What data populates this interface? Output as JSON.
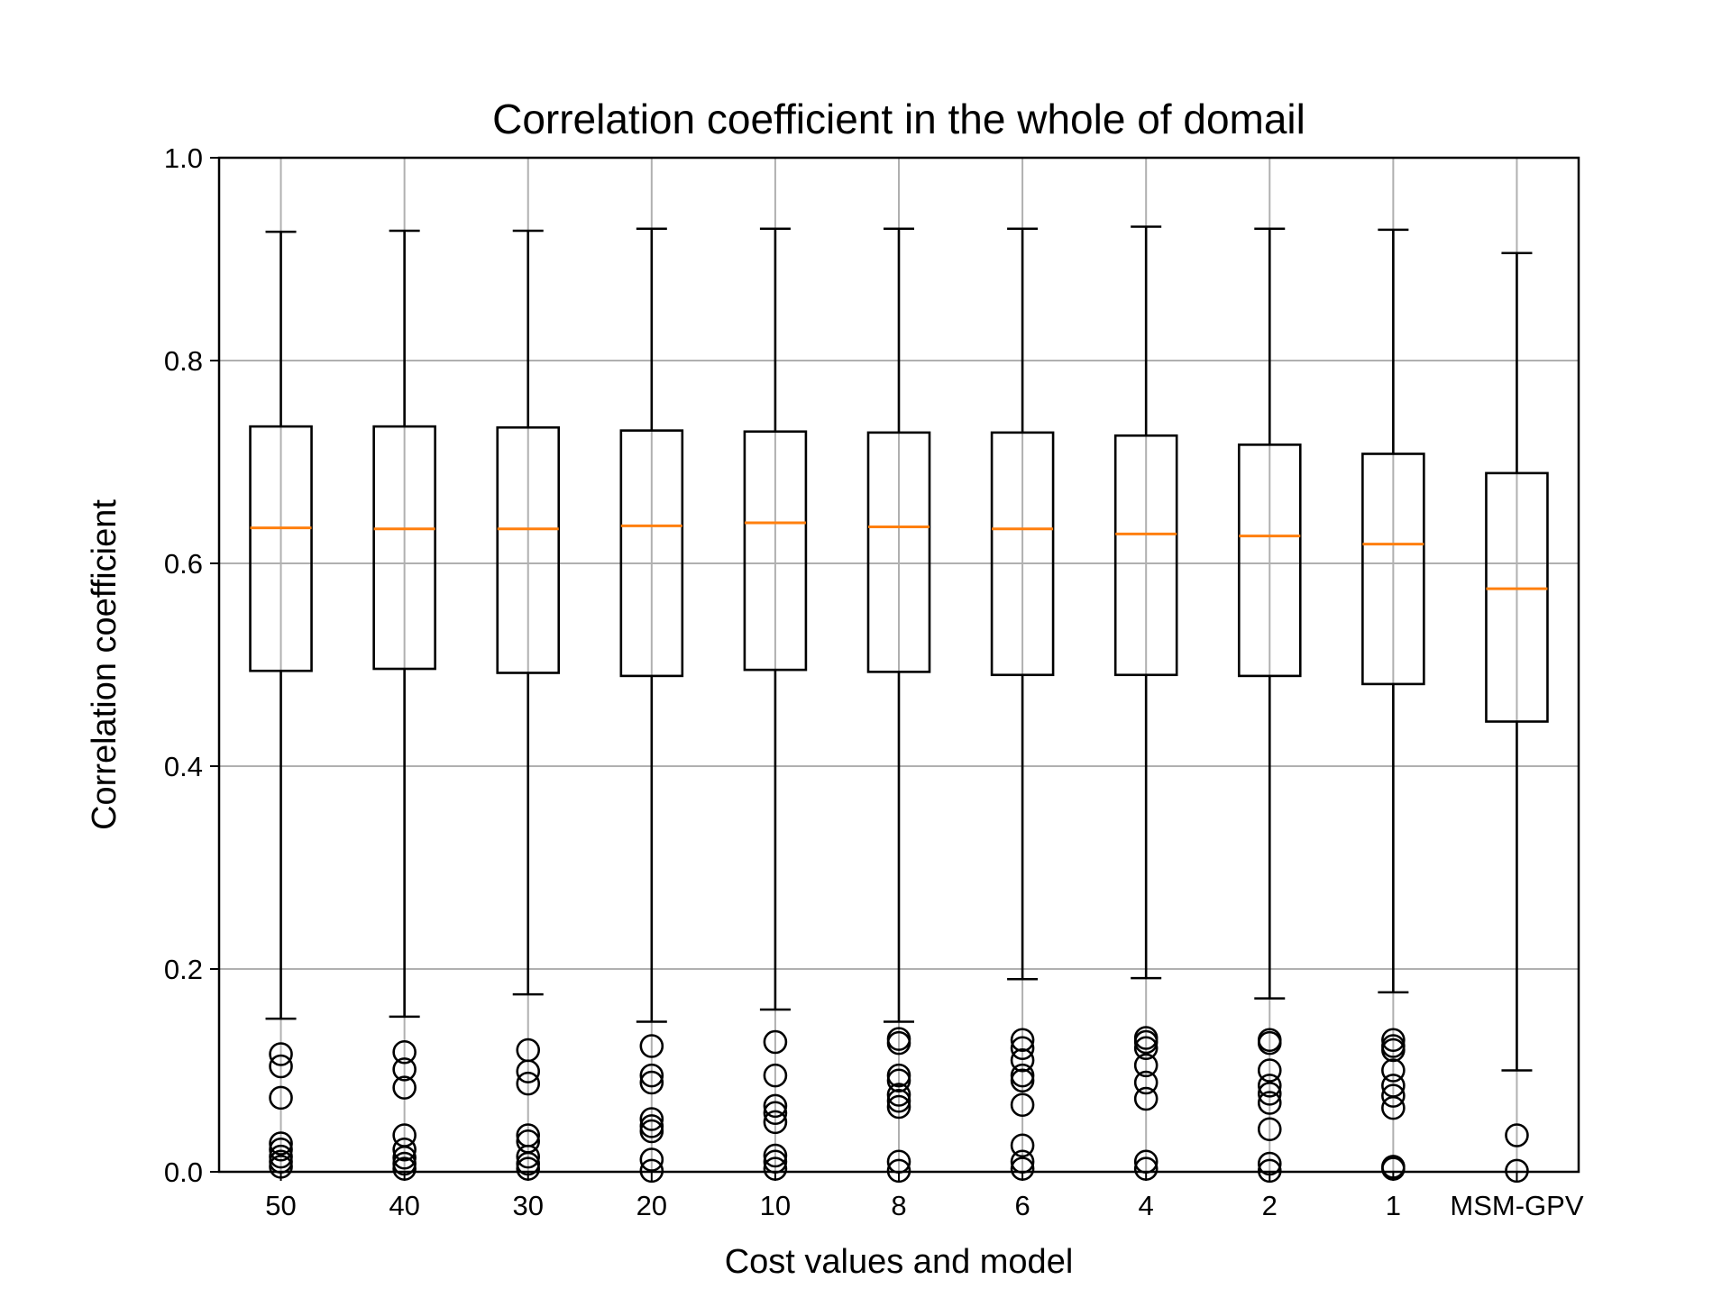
{
  "chart_data": {
    "type": "box",
    "title": "Correlation coefficient in the whole of domail",
    "xlabel": "Cost values and model",
    "ylabel": "Correlation coefficient",
    "ylim": [
      0.0,
      1.0
    ],
    "yticks": [
      "0.0",
      "0.2",
      "0.4",
      "0.6",
      "0.8",
      "1.0"
    ],
    "grid": true,
    "colors": {
      "box": "#000000",
      "median": "#ff7f0e",
      "grid": "#b0b0b0"
    },
    "categories": [
      "50",
      "40",
      "30",
      "20",
      "10",
      "8",
      "6",
      "4",
      "2",
      "1",
      "MSM-GPV"
    ],
    "boxes": [
      {
        "label": "50",
        "whislo": 0.151,
        "q1": 0.494,
        "med": 0.635,
        "q3": 0.735,
        "whishi": 0.927,
        "fliers": [
          0.116,
          0.104,
          0.073,
          0.028,
          0.022,
          0.015,
          0.01,
          0.005
        ]
      },
      {
        "label": "40",
        "whislo": 0.153,
        "q1": 0.496,
        "med": 0.634,
        "q3": 0.735,
        "whishi": 0.928,
        "fliers": [
          0.118,
          0.101,
          0.083,
          0.036,
          0.022,
          0.014,
          0.008,
          0.003
        ]
      },
      {
        "label": "30",
        "whislo": 0.175,
        "q1": 0.492,
        "med": 0.634,
        "q3": 0.734,
        "whishi": 0.928,
        "fliers": [
          0.12,
          0.099,
          0.087,
          0.036,
          0.03,
          0.015,
          0.008,
          0.003
        ]
      },
      {
        "label": "20",
        "whislo": 0.148,
        "q1": 0.489,
        "med": 0.637,
        "q3": 0.731,
        "whishi": 0.93,
        "fliers": [
          0.124,
          0.095,
          0.088,
          0.052,
          0.045,
          0.04,
          0.012,
          0.001
        ]
      },
      {
        "label": "10",
        "whislo": 0.16,
        "q1": 0.495,
        "med": 0.64,
        "q3": 0.73,
        "whishi": 0.93,
        "fliers": [
          0.128,
          0.095,
          0.065,
          0.058,
          0.049,
          0.016,
          0.01,
          0.003
        ]
      },
      {
        "label": "8",
        "whislo": 0.148,
        "q1": 0.493,
        "med": 0.636,
        "q3": 0.729,
        "whishi": 0.93,
        "fliers": [
          0.131,
          0.127,
          0.095,
          0.09,
          0.076,
          0.07,
          0.064,
          0.01,
          0.001
        ]
      },
      {
        "label": "6",
        "whislo": 0.19,
        "q1": 0.49,
        "med": 0.634,
        "q3": 0.729,
        "whishi": 0.93,
        "fliers": [
          0.13,
          0.122,
          0.11,
          0.095,
          0.09,
          0.066,
          0.026,
          0.01,
          0.003
        ]
      },
      {
        "label": "4",
        "whislo": 0.191,
        "q1": 0.49,
        "med": 0.629,
        "q3": 0.726,
        "whishi": 0.932,
        "fliers": [
          0.132,
          0.128,
          0.122,
          0.105,
          0.088,
          0.072,
          0.01,
          0.003
        ]
      },
      {
        "label": "2",
        "whislo": 0.171,
        "q1": 0.489,
        "med": 0.627,
        "q3": 0.717,
        "whishi": 0.93,
        "fliers": [
          0.13,
          0.127,
          0.1,
          0.085,
          0.077,
          0.068,
          0.042,
          0.008,
          0.001
        ]
      },
      {
        "label": "1",
        "whislo": 0.177,
        "q1": 0.481,
        "med": 0.619,
        "q3": 0.708,
        "whishi": 0.929,
        "fliers": [
          0.13,
          0.124,
          0.12,
          0.1,
          0.085,
          0.075,
          0.063,
          0.005,
          0.003
        ]
      },
      {
        "label": "MSM-GPV",
        "whislo": 0.1,
        "q1": 0.444,
        "med": 0.575,
        "q3": 0.689,
        "whishi": 0.906,
        "fliers": [
          0.036,
          0.001
        ]
      }
    ]
  }
}
